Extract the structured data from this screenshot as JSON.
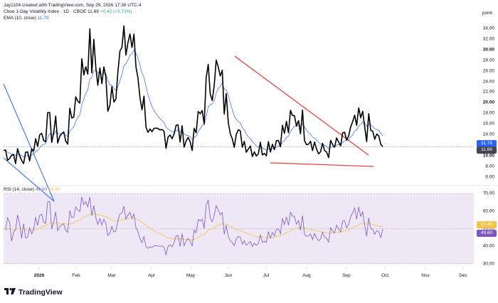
{
  "header": {
    "author_line": "Jay1104 created with TradingView.com, Sep 29, 2026 17:36 UTC-4",
    "symbol": "Cboe 1-Day Volatility Index · 1D · CBOE",
    "last": "11.69",
    "change": "+0.42 (+3.73%)",
    "ema_label": "EMA (10, close)",
    "ema_value": "11.79"
  },
  "price_axis": {
    "unit": "point",
    "ticks": [
      "34.00",
      "32.00",
      "30.00",
      "28.00",
      "26.00",
      "24.00",
      "22.00",
      "20.00",
      "18.00",
      "16.00",
      "14.00",
      "12.00",
      "10.00",
      "8.00",
      "6.00"
    ],
    "bold_ticks": [
      "30.00",
      "20.00",
      "10.00"
    ],
    "ema_badge": "11.79",
    "last_badge": "11.69"
  },
  "rsi": {
    "label": "RSI (14, close)",
    "value": "49.60",
    "ma_value": "51.40",
    "ticks": [
      "70.00",
      "60.00",
      "50.00",
      "40.00",
      "30.00"
    ]
  },
  "time_axis": {
    "labels": [
      "2026",
      "Feb",
      "Mar",
      "Apr",
      "May",
      "Jun",
      "Jul",
      "Aug",
      "Sep",
      "Oct",
      "Nov",
      "Dec"
    ]
  },
  "colors": {
    "price": "#000000",
    "ema": "#2962ff",
    "rsi": "#7e57c2",
    "rsi_ma": "#f7c244",
    "band": "#ede7f6",
    "trendline_red": "#e53935",
    "trendline_blue": "#2962ff",
    "ema_badge": "#2962ff",
    "last_badge": "#434651",
    "rsi_badge": "#7e57c2",
    "rsi_ma_badge": "#f7c244"
  },
  "brand": {
    "name": "TradingView",
    "logo_icon": "tradingview-logo-icon"
  },
  "chart_data": {
    "type": "line",
    "x": [
      "2026-01-02",
      "2026-01-16",
      "2026-02-02",
      "2026-02-16",
      "2026-03-02",
      "2026-03-16",
      "2026-04-01",
      "2026-04-15",
      "2026-05-01",
      "2026-05-15",
      "2026-06-01",
      "2026-06-15",
      "2026-07-01",
      "2026-07-15",
      "2026-08-03",
      "2026-08-17",
      "2026-09-01",
      "2026-09-15",
      "2026-09-29"
    ],
    "series": [
      {
        "values": [
          11.0,
          9.2,
          15.5,
          13.5,
          30.0,
          22.0,
          33.0,
          13.0,
          15.0,
          12.5,
          27.0,
          14.0,
          11.0,
          13.0,
          17.5,
          10.5,
          12.0,
          16.5,
          11.69
        ]
      }
    ],
    "ylim": [
      5,
      36
    ]
  }
}
